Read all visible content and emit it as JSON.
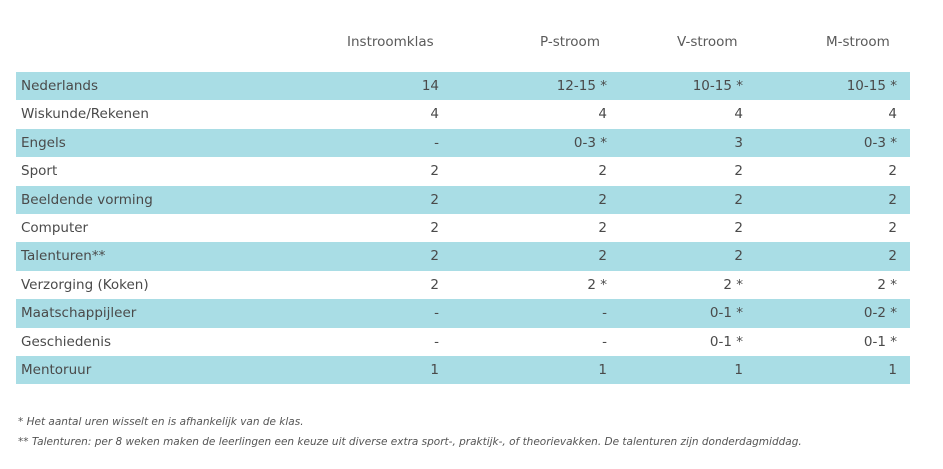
{
  "table": {
    "headers": [
      "Instroomklas",
      "P-stroom",
      "V-stroom",
      "M-stroom"
    ],
    "rows": [
      {
        "subject": "Nederlands",
        "values": [
          "14",
          "12-15 *",
          "10-15 *",
          "10-15 *"
        ],
        "shaded": true
      },
      {
        "subject": "Wiskunde/Rekenen",
        "values": [
          "4",
          "4",
          "4",
          "4"
        ],
        "shaded": false
      },
      {
        "subject": "Engels",
        "values": [
          "-",
          "0-3 *",
          "3",
          "0-3 *"
        ],
        "shaded": true
      },
      {
        "subject": "Sport",
        "values": [
          "2",
          "2",
          "2",
          "2"
        ],
        "shaded": false
      },
      {
        "subject": "Beeldende vorming",
        "values": [
          "2",
          "2",
          "2",
          "2"
        ],
        "shaded": true
      },
      {
        "subject": "Computer",
        "values": [
          "2",
          "2",
          "2",
          "2"
        ],
        "shaded": false
      },
      {
        "subject": "Talenturen**",
        "values": [
          "2",
          "2",
          "2",
          "2"
        ],
        "shaded": true
      },
      {
        "subject": "Verzorging (Koken)",
        "values": [
          "2",
          "2 *",
          "2 *",
          "2 *"
        ],
        "shaded": false
      },
      {
        "subject": "Maatschappijleer",
        "values": [
          "-",
          "-",
          "0-1 *",
          "0-2 *"
        ],
        "shaded": true
      },
      {
        "subject": "Geschiedenis",
        "values": [
          "-",
          "-",
          "0-1 *",
          "0-1 *"
        ],
        "shaded": false
      },
      {
        "subject": "Mentoruur",
        "values": [
          "1",
          "1",
          "1",
          "1"
        ],
        "shaded": true
      }
    ]
  },
  "footnotes": {
    "note1": "* Het aantal uren wisselt en is afhankelijk van de klas.",
    "note2": "** Talenturen: per 8 weken maken de leerlingen een keuze uit diverse extra sport-, praktijk-, of theorievakken. De talenturen zijn donderdagmiddag."
  },
  "colors": {
    "row_shade": "#a9dde5",
    "text": "#4a4a4a"
  }
}
